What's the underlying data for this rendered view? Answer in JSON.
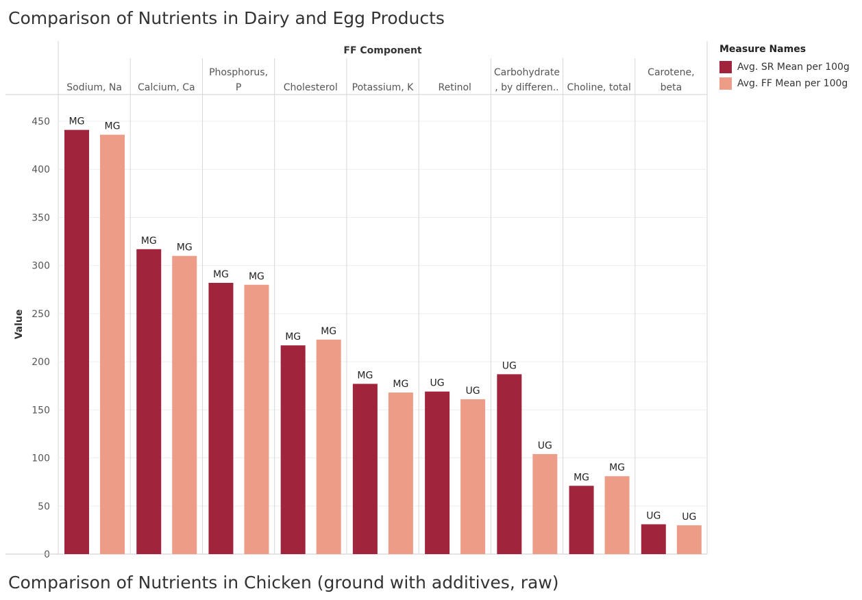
{
  "page": {
    "title": "Comparison of Nutrients in Dairy and Egg Products",
    "next_title": "Comparison of Nutrients in Chicken (ground with additives, raw)"
  },
  "legend": {
    "title": "Measure Names",
    "items": [
      {
        "label": "Avg. SR Mean per 100g",
        "color": "#a0243b"
      },
      {
        "label": "Avg. FF Mean per 100g",
        "color": "#ed9d87"
      }
    ]
  },
  "chart_data": {
    "type": "bar",
    "title": "Comparison of Nutrients in Dairy and Egg Products",
    "column_header": "FF Component",
    "ylabel": "Value",
    "ylim": [
      0,
      475
    ],
    "yticks": [
      0,
      50,
      100,
      150,
      200,
      250,
      300,
      350,
      400,
      450
    ],
    "categories": [
      {
        "lines": [
          "Sodium, Na"
        ]
      },
      {
        "lines": [
          "Calcium, Ca"
        ]
      },
      {
        "lines": [
          "Phosphorus,",
          "P"
        ]
      },
      {
        "lines": [
          "Cholesterol"
        ]
      },
      {
        "lines": [
          "Potassium, K"
        ]
      },
      {
        "lines": [
          "Retinol"
        ]
      },
      {
        "lines": [
          "Carbohydrate",
          ", by differen.."
        ]
      },
      {
        "lines": [
          "Choline, total"
        ]
      },
      {
        "lines": [
          "Carotene,",
          "beta"
        ]
      }
    ],
    "series": [
      {
        "name": "Avg. SR Mean per 100g",
        "color": "#a0243b",
        "values": [
          441,
          317,
          282,
          217,
          177,
          169,
          187,
          71,
          31
        ],
        "labels": [
          "MG",
          "MG",
          "MG",
          "MG",
          "MG",
          "UG",
          "UG",
          "MG",
          "UG"
        ]
      },
      {
        "name": "Avg. FF Mean per 100g",
        "color": "#ed9d87",
        "values": [
          436,
          310,
          280,
          223,
          168,
          161,
          104,
          81,
          30
        ],
        "labels": [
          "MG",
          "MG",
          "MG",
          "MG",
          "MG",
          "UG",
          "UG",
          "MG",
          "UG"
        ]
      }
    ],
    "grid": true
  }
}
